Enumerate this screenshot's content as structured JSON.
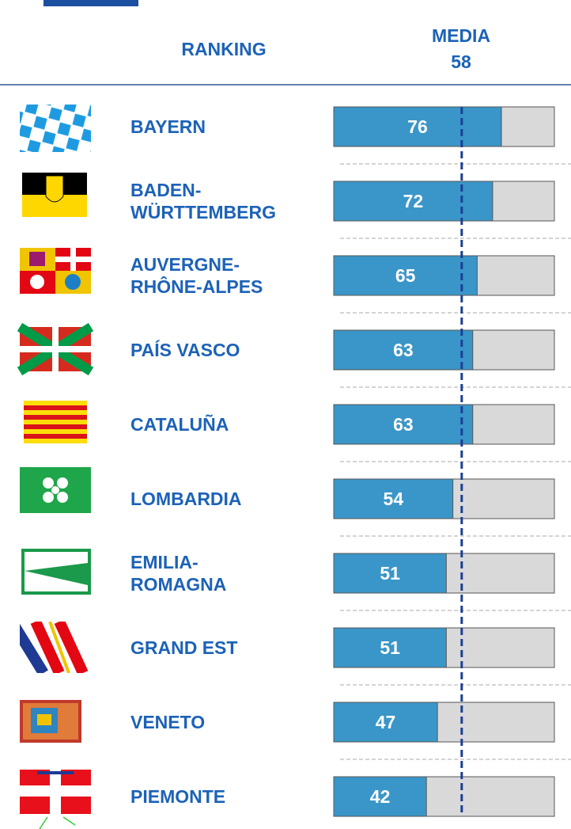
{
  "chart_data": {
    "type": "hbar",
    "title": "RANKING",
    "categories": [
      "BAYERN",
      "BADEN-\nWÜRTTEMBERG",
      "AUVERGNE-\nRHÔNE-ALPES",
      "PAÍS VASCO",
      "CATALUÑA",
      "LOMBARDIA",
      "EMILIA-\nROMAGNA",
      "GRAND EST",
      "VENETO",
      "PIEMONTE"
    ],
    "values": [
      76,
      72,
      65,
      63,
      63,
      54,
      51,
      51,
      47,
      42
    ],
    "xlim": [
      0,
      100
    ],
    "color": "#3a96c8",
    "track_color": "#d9d9d9",
    "mean_label": "MEDIA",
    "mean": 58,
    "mean_color": "#1b3f95"
  }
}
